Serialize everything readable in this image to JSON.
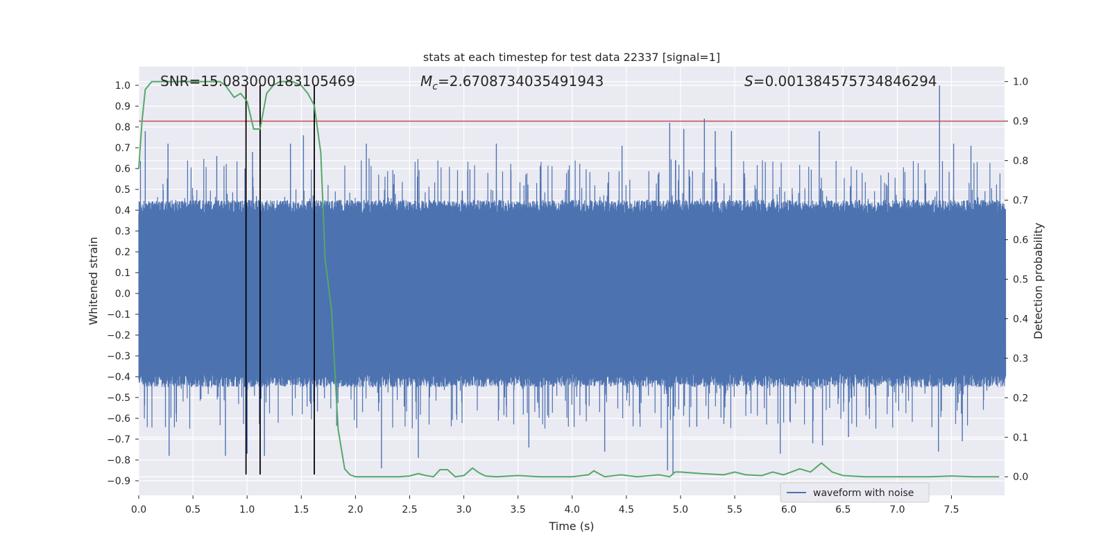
{
  "chart_data": {
    "type": "line",
    "title": "stats at each timestep for test data 22337 [signal=1]",
    "xlabel": "Time (s)",
    "ylabel": "Whitened strain",
    "y2label": "Detection probability",
    "xlim": [
      0,
      7.99
    ],
    "ylim": [
      -0.97,
      1.09
    ],
    "y2lim": [
      -0.047,
      1.038
    ],
    "xticks": [
      0.0,
      0.5,
      1.0,
      1.5,
      2.0,
      2.5,
      3.0,
      3.5,
      4.0,
      4.5,
      5.0,
      5.5,
      6.0,
      6.5,
      7.0,
      7.5
    ],
    "yticks": [
      -0.9,
      -0.8,
      -0.7,
      -0.6,
      -0.5,
      -0.4,
      -0.3,
      -0.2,
      -0.1,
      0.0,
      0.1,
      0.2,
      0.3,
      0.4,
      0.5,
      0.6,
      0.7,
      0.8,
      0.9,
      1.0
    ],
    "y2ticks": [
      0.0,
      0.1,
      0.2,
      0.3,
      0.4,
      0.5,
      0.6,
      0.7,
      0.8,
      0.9,
      1.0
    ],
    "grid": true,
    "legend": {
      "location": "lower-right",
      "entries": [
        "waveform with noise"
      ]
    },
    "annotations": {
      "snr": "SNR=15.083000183105469",
      "mc_symbol": "M",
      "mc_sub": "c",
      "mc_value": "=2.6708734035491943",
      "s_symbol": "S",
      "s_value": "=0.001384575734846294"
    },
    "threshold_line": {
      "axis": "y2",
      "value": 0.9
    },
    "vertical_lines": [
      0.99,
      1.12,
      1.62
    ],
    "waveform": {
      "name": "waveform with noise",
      "duration": 8.0,
      "typical_positive_max": 0.45,
      "typical_negative_min": -0.45,
      "peaks": [
        [
          0.06,
          0.78
        ],
        [
          0.27,
          0.72
        ],
        [
          0.72,
          0.66
        ],
        [
          0.98,
          0.6
        ],
        [
          1.05,
          0.68
        ],
        [
          1.4,
          0.72
        ],
        [
          1.52,
          0.76
        ],
        [
          2.1,
          0.72
        ],
        [
          3.3,
          0.72
        ],
        [
          4.46,
          0.71
        ],
        [
          4.9,
          0.82
        ],
        [
          5.03,
          0.79
        ],
        [
          5.22,
          0.84
        ],
        [
          5.32,
          0.78
        ],
        [
          5.47,
          0.78
        ],
        [
          6.28,
          0.78
        ],
        [
          7.39,
          1.0
        ],
        [
          7.52,
          0.72
        ],
        [
          7.68,
          0.71
        ]
      ],
      "troughs": [
        [
          0.28,
          -0.78
        ],
        [
          0.8,
          -0.78
        ],
        [
          1.0,
          -0.77
        ],
        [
          1.16,
          -0.78
        ],
        [
          2.24,
          -0.84
        ],
        [
          2.58,
          -0.79
        ],
        [
          3.6,
          -0.74
        ],
        [
          4.3,
          -0.76
        ],
        [
          4.88,
          -0.85
        ],
        [
          4.93,
          -0.87
        ],
        [
          5.15,
          -0.64
        ],
        [
          5.92,
          -0.77
        ],
        [
          6.22,
          -0.72
        ],
        [
          6.31,
          -0.73
        ],
        [
          6.55,
          -0.69
        ],
        [
          7.38,
          -0.76
        ],
        [
          7.6,
          -0.71
        ]
      ],
      "color": "#4c72b0"
    },
    "probability": {
      "axis": "y2",
      "color": "#55a868",
      "x": [
        0.0,
        0.03,
        0.06,
        0.12,
        0.2,
        0.3,
        0.4,
        0.5,
        0.6,
        0.7,
        0.75,
        0.8,
        0.88,
        0.94,
        1.0,
        1.06,
        1.12,
        1.18,
        1.24,
        1.3,
        1.36,
        1.42,
        1.5,
        1.56,
        1.62,
        1.68,
        1.72,
        1.78,
        1.84,
        1.9,
        1.95,
        2.0,
        2.2,
        2.4,
        2.5,
        2.58,
        2.65,
        2.72,
        2.78,
        2.85,
        2.92,
        3.0,
        3.08,
        3.14,
        3.2,
        3.3,
        3.5,
        3.7,
        4.0,
        4.15,
        4.2,
        4.3,
        4.45,
        4.6,
        4.8,
        4.9,
        4.95,
        5.0,
        5.2,
        5.4,
        5.5,
        5.6,
        5.75,
        5.85,
        5.95,
        6.1,
        6.2,
        6.3,
        6.4,
        6.5,
        6.7,
        7.0,
        7.3,
        7.5,
        7.7,
        7.94
      ],
      "y": [
        0.78,
        0.9,
        0.98,
        1.0,
        1.0,
        1.0,
        1.0,
        1.0,
        1.0,
        1.0,
        1.0,
        0.99,
        0.96,
        0.97,
        0.95,
        0.88,
        0.88,
        0.97,
        0.99,
        1.0,
        1.0,
        1.0,
        0.99,
        0.97,
        0.94,
        0.82,
        0.55,
        0.42,
        0.12,
        0.02,
        0.005,
        0.0,
        0.0,
        0.0,
        0.002,
        0.008,
        0.003,
        0.0,
        0.018,
        0.018,
        0.0,
        0.003,
        0.022,
        0.01,
        0.002,
        0.0,
        0.003,
        0.0,
        0.0,
        0.005,
        0.015,
        0.0,
        0.005,
        0.0,
        0.005,
        0.0,
        0.012,
        0.012,
        0.008,
        0.005,
        0.012,
        0.005,
        0.003,
        0.012,
        0.005,
        0.02,
        0.012,
        0.035,
        0.012,
        0.003,
        0.0,
        0.0,
        0.0,
        0.002,
        0.0,
        0.0
      ]
    }
  }
}
